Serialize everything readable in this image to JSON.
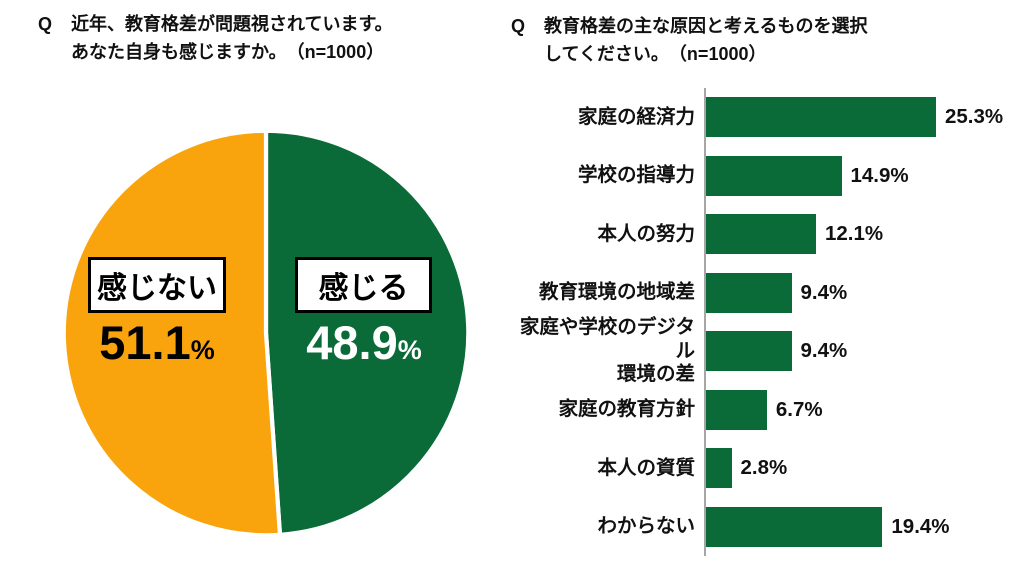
{
  "chart_data": [
    {
      "type": "pie",
      "q_label": "Q",
      "title": "近年、教育格差が問題視されています。\nあなた自身も感じますか。　（n=1000）",
      "categories": [
        "感じる",
        "感じない"
      ],
      "values": [
        48.9,
        51.1
      ],
      "value_texts": [
        "48.9",
        "51.1"
      ],
      "percent_sign": "%",
      "colors": [
        "#0A6B38",
        "#FAA40D"
      ],
      "value_text_colors": [
        "#FFFFFF",
        "#000000"
      ],
      "start_angle_deg": 0,
      "direction": "clockwise",
      "slice_border_color": "#FFFFFF"
    },
    {
      "type": "bar",
      "orientation": "horizontal",
      "q_label": "Q",
      "title": "教育格差の主な原因と考えるものを選択\nしてください。　（n=1000）",
      "categories": [
        "家庭の経済力",
        "学校の指導力",
        "本人の努力",
        "教育環境の地域差",
        "家庭や学校のデジタル\n環境の差",
        "家庭の教育方針",
        "本人の資質",
        "わからない"
      ],
      "values": [
        25.3,
        14.9,
        12.1,
        9.4,
        9.4,
        6.7,
        2.8,
        19.4
      ],
      "value_labels": [
        "25.3%",
        "14.9%",
        "12.1%",
        "9.4%",
        "9.4%",
        "6.7%",
        "2.8%",
        "19.4%"
      ],
      "bar_color": "#0A6B38",
      "axis_line_color": "#A6A6A6",
      "xlim": [
        0,
        27
      ],
      "grid": false,
      "legend": false
    }
  ]
}
